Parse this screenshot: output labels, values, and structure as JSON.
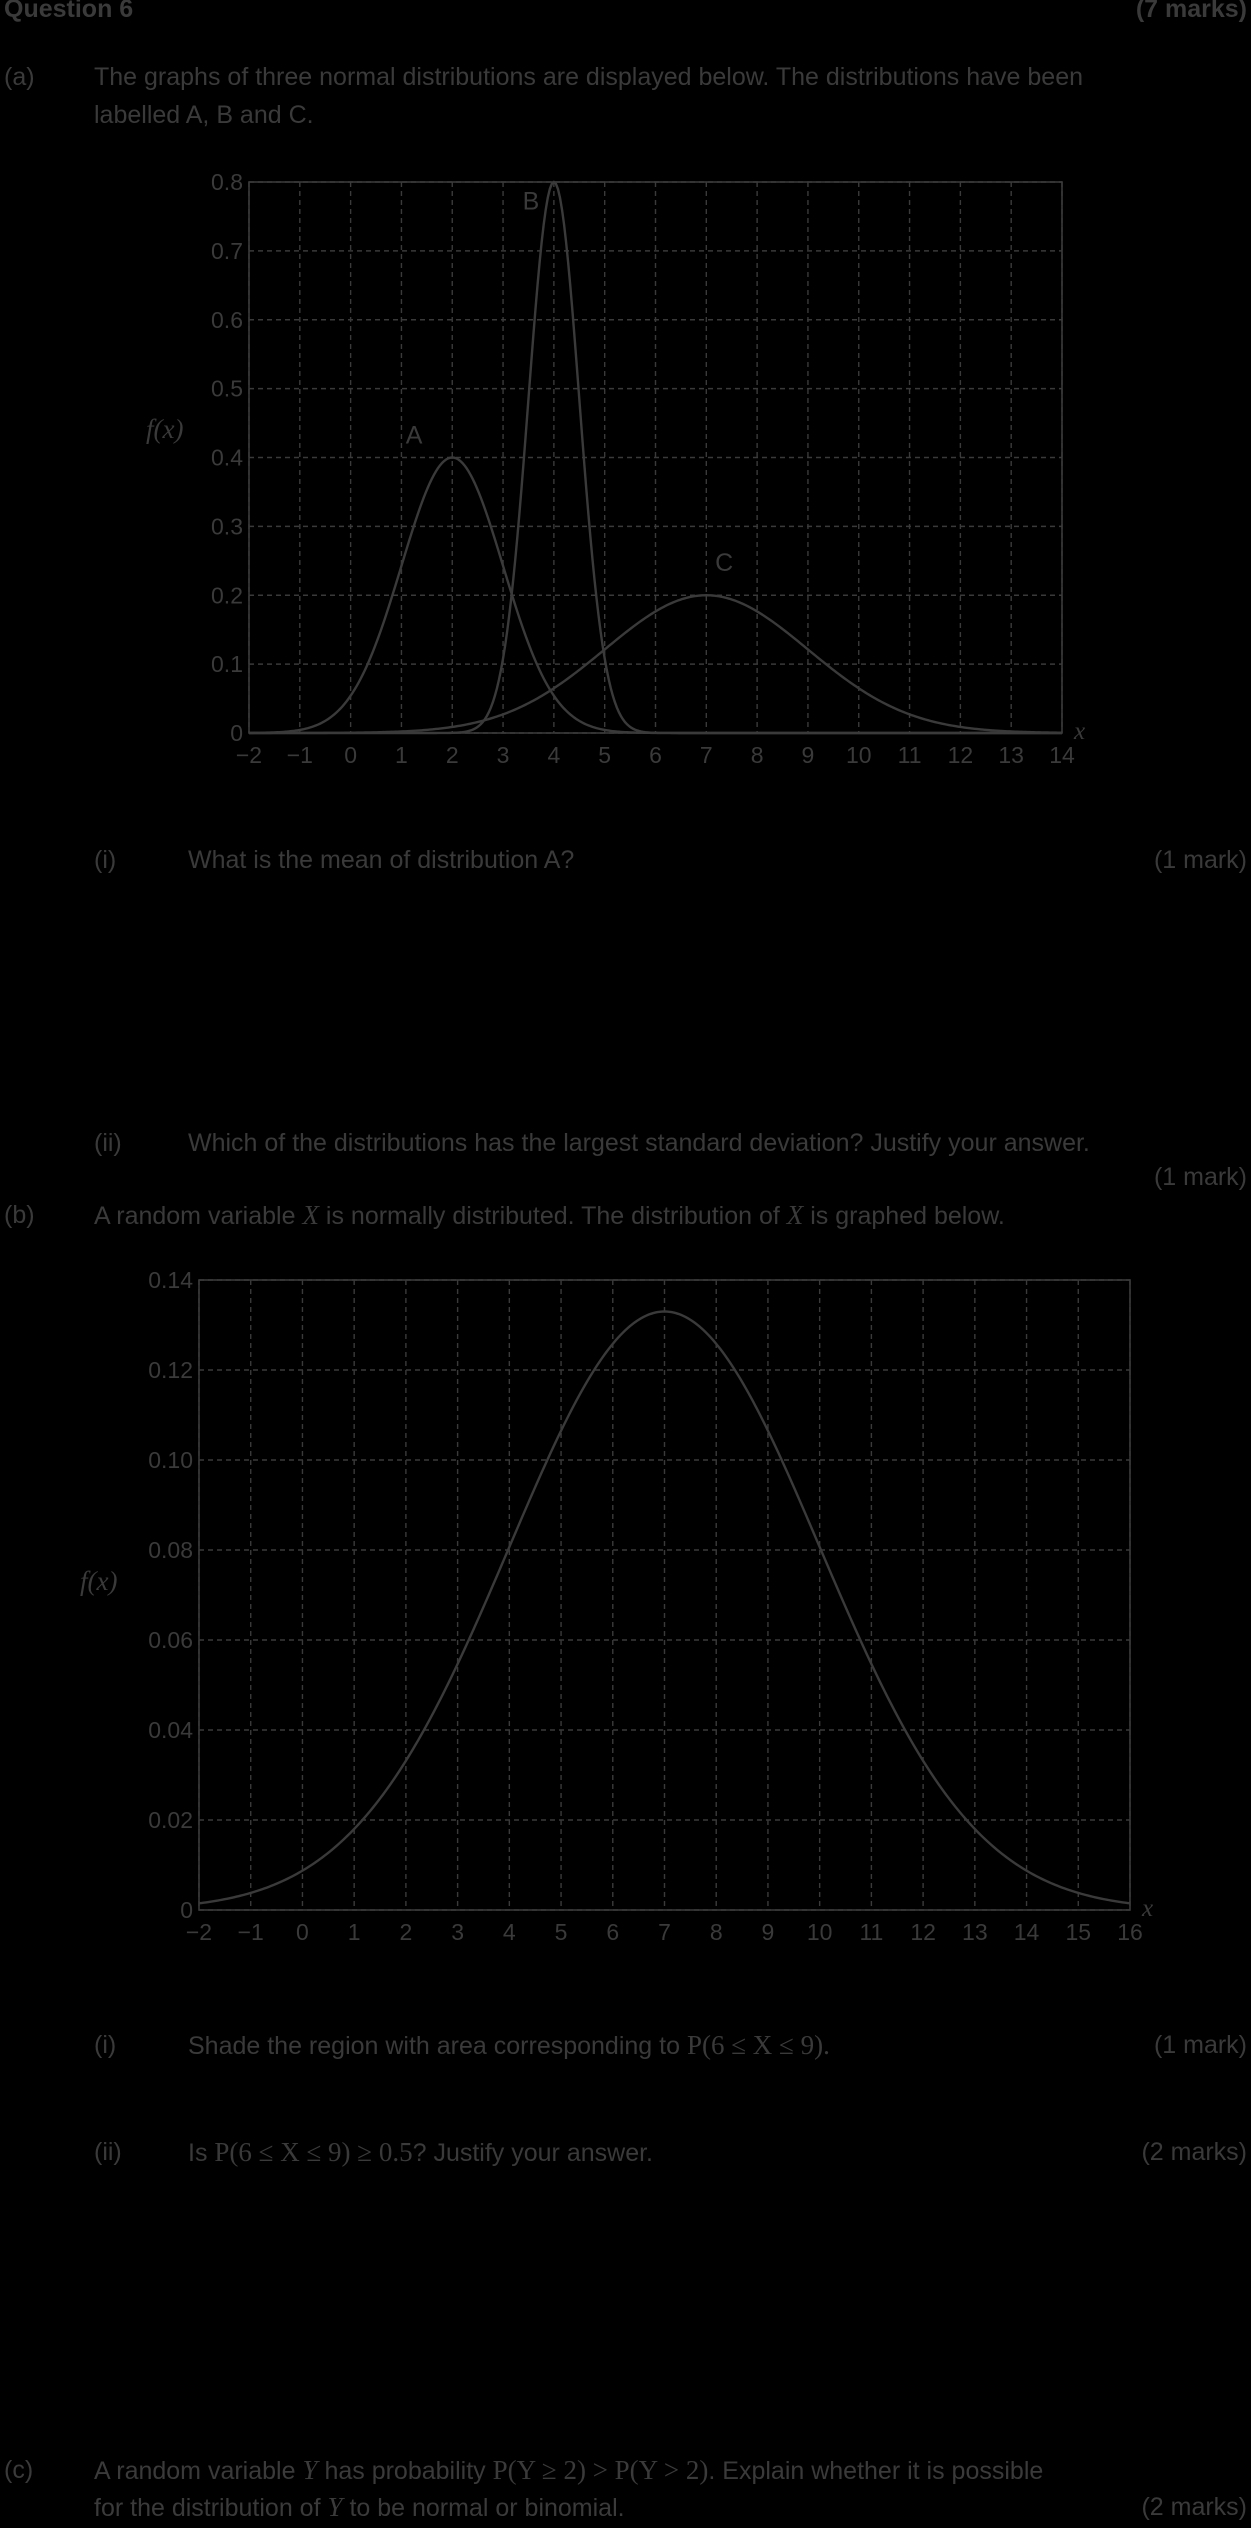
{
  "header": {
    "question": "Question 6",
    "marks": "(7 marks)"
  },
  "part_a": {
    "label": "(a)",
    "line1": "The graphs of three normal distributions are displayed below. The distributions have been",
    "line2": "labelled A, B and C.",
    "i": {
      "label": "(i)",
      "text": "What is the mean of distribution A?",
      "marks": "(1 mark)"
    },
    "ii": {
      "label": "(ii)",
      "text": "Which of the distributions has the largest standard deviation? Justify your answer.",
      "marks": "(1 mark)"
    }
  },
  "part_b": {
    "label": "(b)",
    "text_pre": "A random variable",
    "var": "X",
    "text_mid": "is normally distributed. The distribution of",
    "text_post": "is graphed below.",
    "i": {
      "label": "(i)",
      "text": "Shade the region with area corresponding to",
      "math": "P(6 ≤ X ≤ 9).",
      "marks": "(1 mark)"
    },
    "ii": {
      "label": "(ii)",
      "text_pre": "Is",
      "math": "P(6 ≤ X ≤ 9) ≥ 0.5",
      "text_post": "? Justify your answer.",
      "marks": "(2 marks)"
    }
  },
  "part_c": {
    "label": "(c)",
    "text_pre": "A random variable",
    "var": "Y",
    "text_mid": "has probability",
    "math": "P(Y ≥ 2) > P(Y > 2)",
    "text_post": ". Explain whether it is possible",
    "line2_pre": "for the distribution of",
    "line2_post": "to be normal or binomial.",
    "marks": "(2 marks)"
  },
  "chart_data": [
    {
      "type": "line",
      "xlabel": "x",
      "ylabel": "f(x)",
      "xlim": [
        -2,
        14
      ],
      "ylim": [
        0,
        0.8
      ],
      "x_ticks": [
        "−2",
        "−1",
        "0",
        "1",
        "2",
        "3",
        "4",
        "5",
        "6",
        "7",
        "8",
        "9",
        "10",
        "11",
        "12",
        "13",
        "14"
      ],
      "y_ticks": [
        "0",
        "0.1",
        "0.2",
        "0.3",
        "0.4",
        "0.5",
        "0.6",
        "0.7",
        "0.8"
      ],
      "grid": true,
      "series": [
        {
          "name": "A",
          "mean": 2,
          "sd": 1,
          "peak": 0.4
        },
        {
          "name": "B",
          "mean": 4,
          "sd": 0.5,
          "peak": 0.8
        },
        {
          "name": "C",
          "mean": 7,
          "sd": 2,
          "peak": 0.2
        }
      ]
    },
    {
      "type": "line",
      "xlabel": "x",
      "ylabel": "f(x)",
      "xlim": [
        -2,
        16
      ],
      "ylim": [
        0,
        0.14
      ],
      "x_ticks": [
        "−2",
        "−1",
        "0",
        "1",
        "2",
        "3",
        "4",
        "5",
        "6",
        "7",
        "8",
        "9",
        "10",
        "11",
        "12",
        "13",
        "14",
        "15",
        "16"
      ],
      "y_ticks": [
        "0",
        "0.02",
        "0.04",
        "0.06",
        "0.08",
        "0.10",
        "0.12",
        "0.14"
      ],
      "grid": true,
      "series": [
        {
          "mean": 7,
          "sd": 3,
          "peak": 0.133
        }
      ]
    }
  ]
}
